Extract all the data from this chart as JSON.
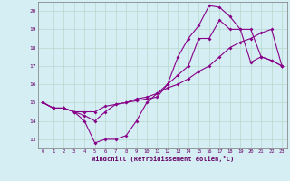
{
  "xlabel": "Windchill (Refroidissement éolien,°C)",
  "bg_color": "#d4eef4",
  "line_color": "#880088",
  "grid_color": "#b8d8cc",
  "xlim": [
    -0.5,
    23.5
  ],
  "ylim": [
    12.5,
    20.5
  ],
  "xticks": [
    0,
    1,
    2,
    3,
    4,
    5,
    6,
    7,
    8,
    9,
    10,
    11,
    12,
    13,
    14,
    15,
    16,
    17,
    18,
    19,
    20,
    21,
    22,
    23
  ],
  "yticks": [
    13,
    14,
    15,
    16,
    17,
    18,
    19,
    20
  ],
  "line1_x": [
    0,
    1,
    2,
    3,
    4,
    5,
    6,
    7,
    8,
    9,
    10,
    11,
    12,
    13,
    14,
    15,
    16,
    17,
    18,
    19,
    20,
    21,
    22,
    23
  ],
  "line1_y": [
    15.0,
    14.7,
    14.7,
    14.5,
    14.0,
    12.8,
    13.0,
    13.0,
    13.2,
    14.0,
    15.0,
    15.5,
    16.0,
    16.5,
    17.0,
    18.5,
    18.5,
    19.5,
    19.0,
    19.0,
    19.0,
    17.5,
    17.3,
    17.0
  ],
  "line2_x": [
    0,
    1,
    2,
    3,
    4,
    5,
    6,
    7,
    8,
    9,
    10,
    11,
    12,
    13,
    14,
    15,
    16,
    17,
    18,
    19,
    20,
    21,
    22,
    23
  ],
  "line2_y": [
    15.0,
    14.7,
    14.7,
    14.5,
    14.5,
    14.5,
    14.8,
    14.9,
    15.0,
    15.2,
    15.3,
    15.5,
    15.8,
    16.0,
    16.3,
    16.7,
    17.0,
    17.5,
    18.0,
    18.3,
    18.5,
    18.8,
    19.0,
    17.0
  ],
  "line3_x": [
    0,
    1,
    2,
    3,
    4,
    5,
    6,
    7,
    8,
    9,
    10,
    11,
    12,
    13,
    14,
    15,
    16,
    17,
    18,
    19,
    20,
    21,
    22,
    23
  ],
  "line3_y": [
    15.0,
    14.7,
    14.7,
    14.5,
    14.3,
    14.0,
    14.5,
    14.9,
    15.0,
    15.1,
    15.2,
    15.3,
    16.0,
    17.5,
    18.5,
    19.2,
    20.3,
    20.2,
    19.7,
    19.0,
    17.2,
    17.5,
    17.3,
    17.0
  ]
}
